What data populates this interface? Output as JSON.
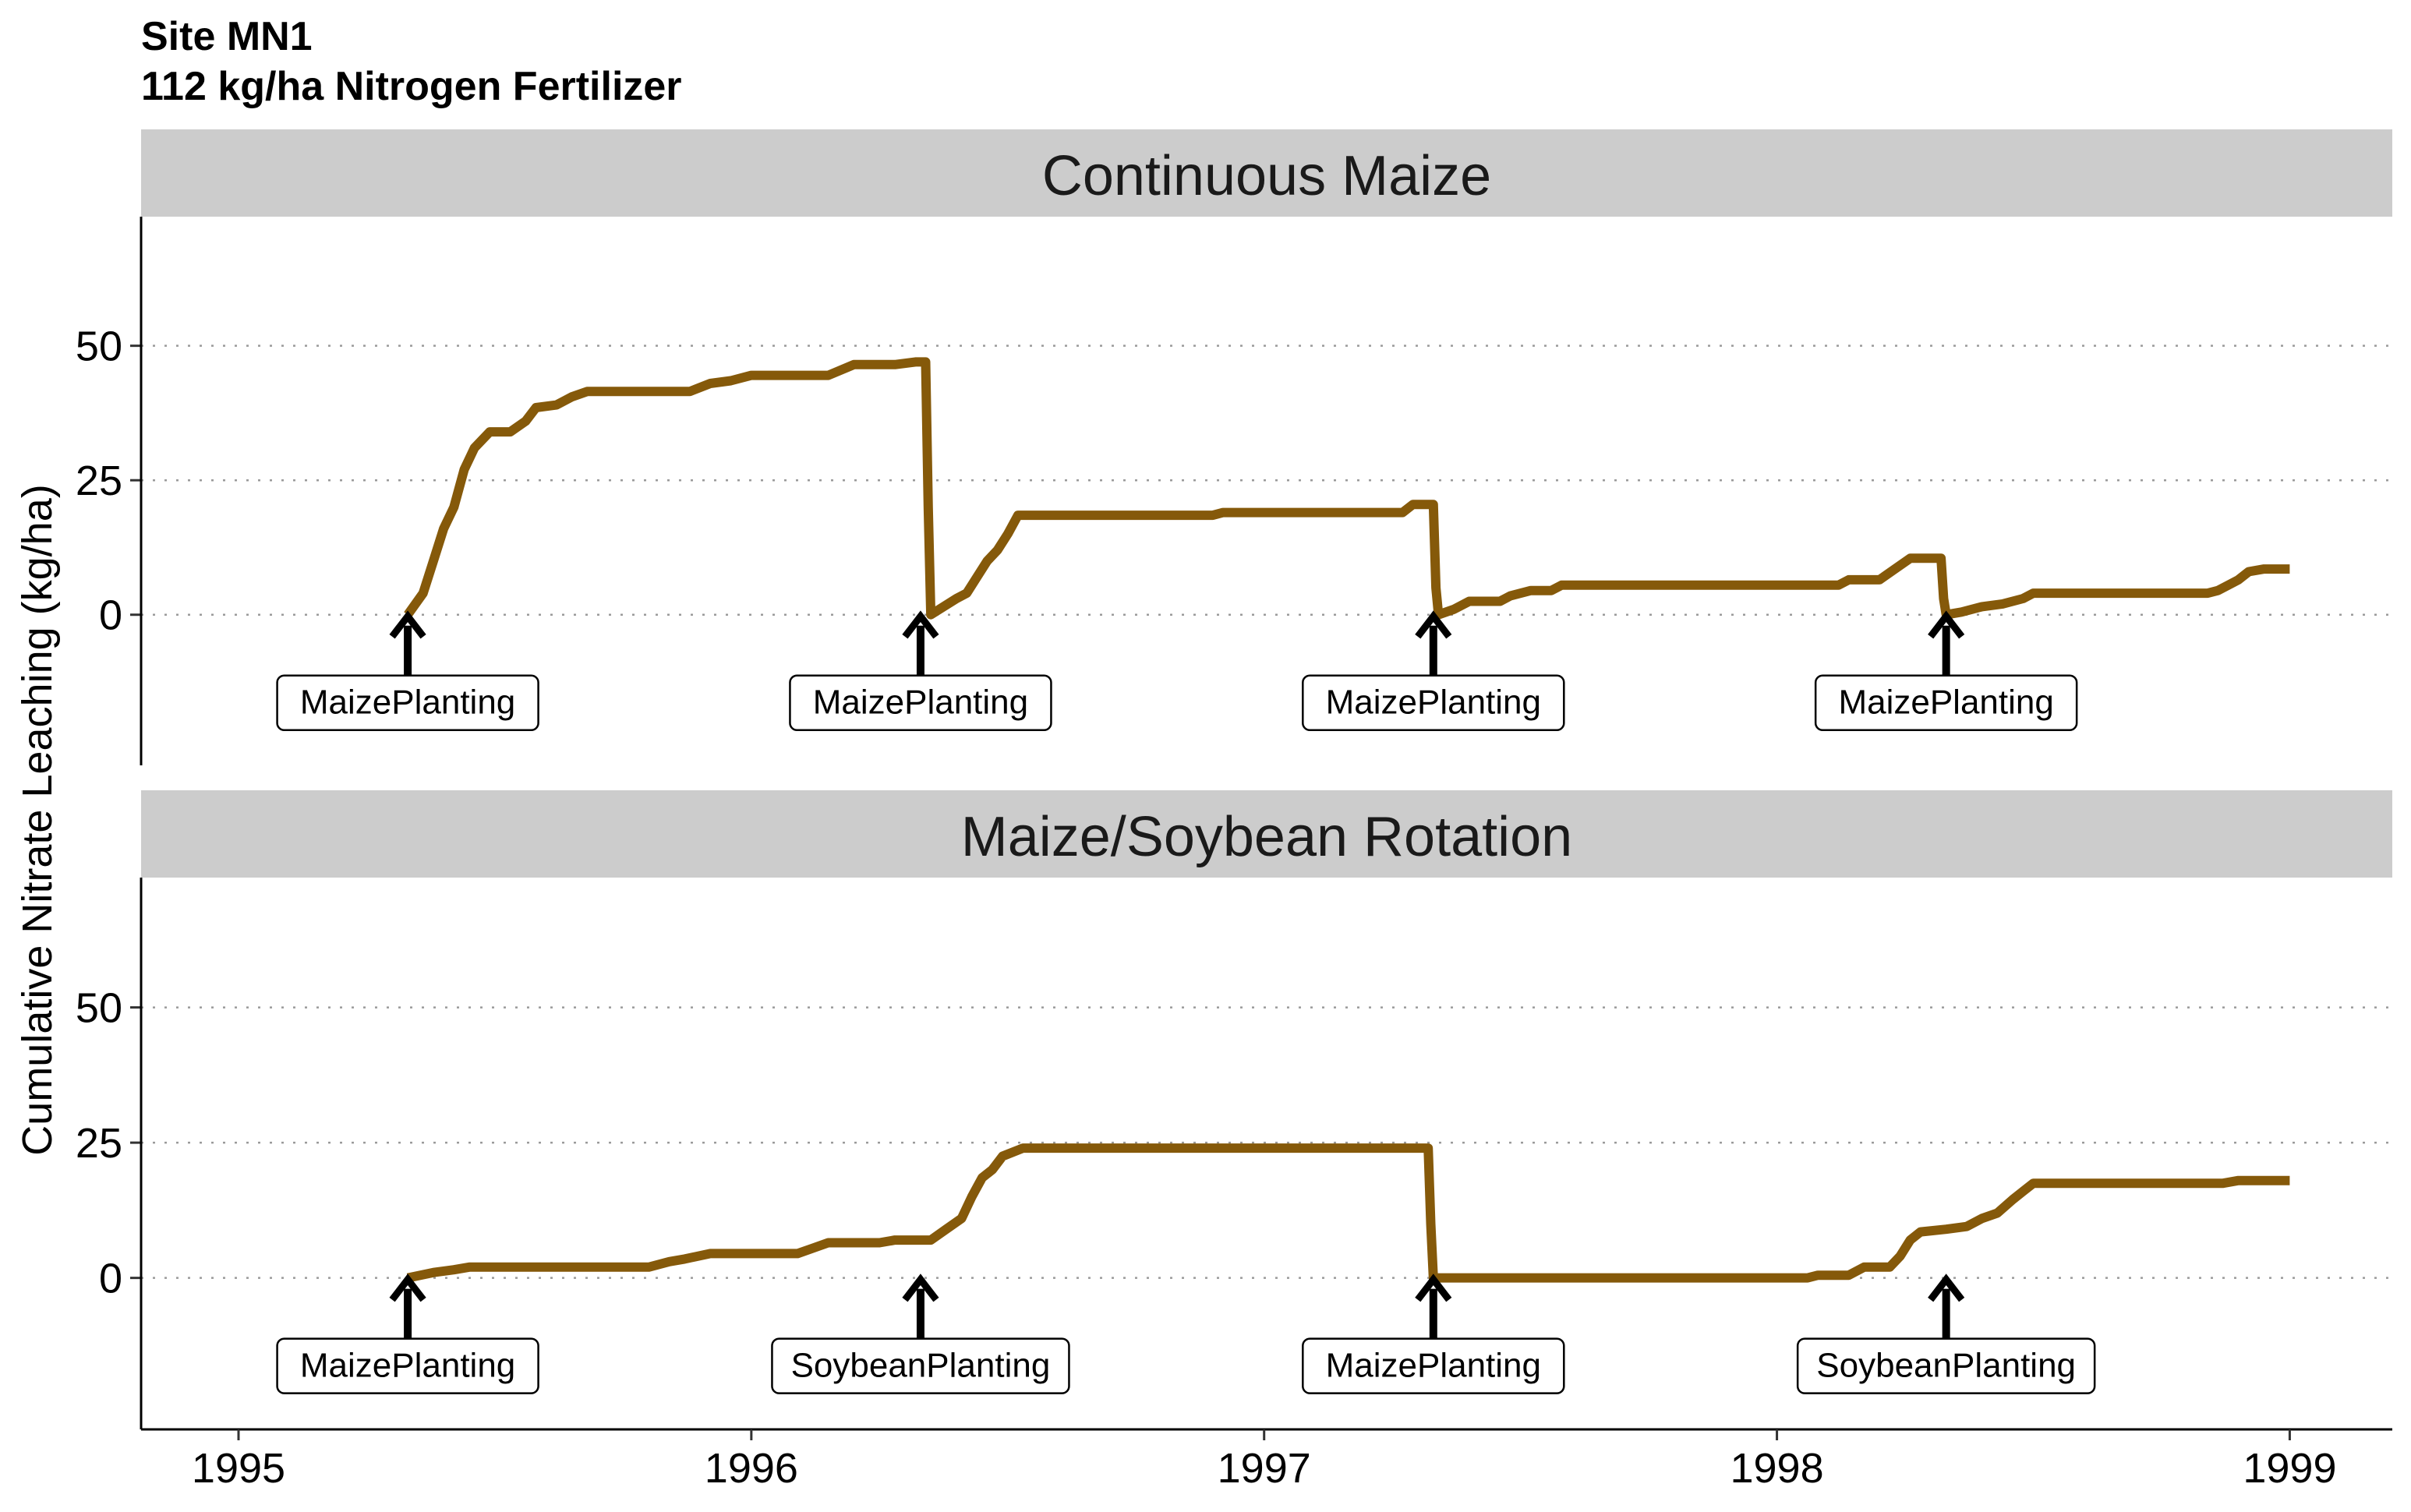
{
  "chart_data": {
    "type": "line",
    "title": "Site MN1",
    "subtitle": "112 kg/ha Nitrogen Fertilizer",
    "ylabel": "Cumulative Nitrate Leaching (kg/ha)",
    "xlabel": "",
    "x_range": [
      1994.81,
      1999.2
    ],
    "ylim": [
      -28,
      74
    ],
    "x_ticks": [
      1995,
      1996,
      1997,
      1998,
      1999
    ],
    "y_ticks": [
      0,
      25,
      50
    ],
    "grid": "horizontal dotted at y ticks",
    "line_color": "#85590A",
    "panels": [
      {
        "strip_label": "Continuous Maize",
        "annotations": [
          {
            "x": 1995.33,
            "label": "MaizePlanting"
          },
          {
            "x": 1996.33,
            "label": "MaizePlanting"
          },
          {
            "x": 1997.33,
            "label": "MaizePlanting"
          },
          {
            "x": 1998.33,
            "label": "MaizePlanting"
          }
        ],
        "points": [
          [
            1995.33,
            0
          ],
          [
            1995.36,
            4
          ],
          [
            1995.38,
            10
          ],
          [
            1995.4,
            16
          ],
          [
            1995.42,
            20
          ],
          [
            1995.44,
            27
          ],
          [
            1995.46,
            31
          ],
          [
            1995.49,
            34
          ],
          [
            1995.53,
            34
          ],
          [
            1995.56,
            36
          ],
          [
            1995.58,
            38.5
          ],
          [
            1995.62,
            39
          ],
          [
            1995.65,
            40.5
          ],
          [
            1995.68,
            41.5
          ],
          [
            1995.8,
            41.5
          ],
          [
            1995.88,
            41.5
          ],
          [
            1995.92,
            43
          ],
          [
            1995.96,
            43.5
          ],
          [
            1996.0,
            44.5
          ],
          [
            1996.15,
            44.5
          ],
          [
            1996.2,
            46.5
          ],
          [
            1996.28,
            46.5
          ],
          [
            1996.32,
            47
          ],
          [
            1996.34,
            47
          ],
          [
            1996.345,
            20
          ],
          [
            1996.35,
            0
          ],
          [
            1996.4,
            3
          ],
          [
            1996.42,
            4
          ],
          [
            1996.44,
            7
          ],
          [
            1996.46,
            10
          ],
          [
            1996.48,
            12
          ],
          [
            1996.5,
            15
          ],
          [
            1996.52,
            18.5
          ],
          [
            1996.6,
            18.5
          ],
          [
            1996.75,
            18.5
          ],
          [
            1996.9,
            18.5
          ],
          [
            1996.92,
            19
          ],
          [
            1997.1,
            19
          ],
          [
            1997.27,
            19
          ],
          [
            1997.29,
            20.5
          ],
          [
            1997.33,
            20.5
          ],
          [
            1997.335,
            5
          ],
          [
            1997.34,
            0
          ],
          [
            1997.37,
            1
          ],
          [
            1997.4,
            2.5
          ],
          [
            1997.46,
            2.5
          ],
          [
            1997.48,
            3.5
          ],
          [
            1997.52,
            4.5
          ],
          [
            1997.56,
            4.5
          ],
          [
            1997.58,
            5.5
          ],
          [
            1997.7,
            5.5
          ],
          [
            1997.85,
            5.5
          ],
          [
            1998.0,
            5.5
          ],
          [
            1998.12,
            5.5
          ],
          [
            1998.14,
            6.5
          ],
          [
            1998.2,
            6.5
          ],
          [
            1998.23,
            8.5
          ],
          [
            1998.26,
            10.5
          ],
          [
            1998.32,
            10.5
          ],
          [
            1998.325,
            3
          ],
          [
            1998.33,
            0
          ],
          [
            1998.36,
            0.5
          ],
          [
            1998.4,
            1.5
          ],
          [
            1998.44,
            2
          ],
          [
            1998.48,
            3
          ],
          [
            1998.5,
            4
          ],
          [
            1998.6,
            4
          ],
          [
            1998.75,
            4
          ],
          [
            1998.84,
            4
          ],
          [
            1998.86,
            4.5
          ],
          [
            1998.88,
            5.5
          ],
          [
            1998.9,
            6.5
          ],
          [
            1998.92,
            8
          ],
          [
            1998.95,
            8.5
          ],
          [
            1999.0,
            8.5
          ]
        ]
      },
      {
        "strip_label": "Maize/Soybean Rotation",
        "annotations": [
          {
            "x": 1995.33,
            "label": "MaizePlanting"
          },
          {
            "x": 1996.33,
            "label": "SoybeanPlanting"
          },
          {
            "x": 1997.33,
            "label": "MaizePlanting"
          },
          {
            "x": 1998.33,
            "label": "SoybeanPlanting"
          }
        ],
        "points": [
          [
            1995.33,
            0
          ],
          [
            1995.38,
            1
          ],
          [
            1995.42,
            1.5
          ],
          [
            1995.45,
            2
          ],
          [
            1995.6,
            2
          ],
          [
            1995.75,
            2
          ],
          [
            1995.8,
            2
          ],
          [
            1995.84,
            3
          ],
          [
            1995.87,
            3.5
          ],
          [
            1995.92,
            4.5
          ],
          [
            1996.0,
            4.5
          ],
          [
            1996.09,
            4.5
          ],
          [
            1996.12,
            5.5
          ],
          [
            1996.15,
            6.5
          ],
          [
            1996.25,
            6.5
          ],
          [
            1996.28,
            7
          ],
          [
            1996.35,
            7
          ],
          [
            1996.38,
            9
          ],
          [
            1996.41,
            11
          ],
          [
            1996.43,
            15
          ],
          [
            1996.45,
            18.5
          ],
          [
            1996.47,
            20
          ],
          [
            1996.49,
            22.5
          ],
          [
            1996.53,
            24
          ],
          [
            1996.7,
            24
          ],
          [
            1996.9,
            24
          ],
          [
            1997.1,
            24
          ],
          [
            1997.28,
            24
          ],
          [
            1997.32,
            24
          ],
          [
            1997.325,
            10
          ],
          [
            1997.33,
            0
          ],
          [
            1997.5,
            0
          ],
          [
            1997.7,
            0
          ],
          [
            1998.0,
            0
          ],
          [
            1998.06,
            0
          ],
          [
            1998.08,
            0.5
          ],
          [
            1998.14,
            0.5
          ],
          [
            1998.17,
            2
          ],
          [
            1998.22,
            2
          ],
          [
            1998.24,
            4
          ],
          [
            1998.26,
            7
          ],
          [
            1998.28,
            8.5
          ],
          [
            1998.33,
            9
          ],
          [
            1998.37,
            9.5
          ],
          [
            1998.4,
            11
          ],
          [
            1998.43,
            12
          ],
          [
            1998.46,
            14.5
          ],
          [
            1998.48,
            16
          ],
          [
            1998.5,
            17.5
          ],
          [
            1998.6,
            17.5
          ],
          [
            1998.8,
            17.5
          ],
          [
            1998.87,
            17.5
          ],
          [
            1998.9,
            18
          ],
          [
            1999.0,
            18
          ]
        ]
      }
    ]
  }
}
